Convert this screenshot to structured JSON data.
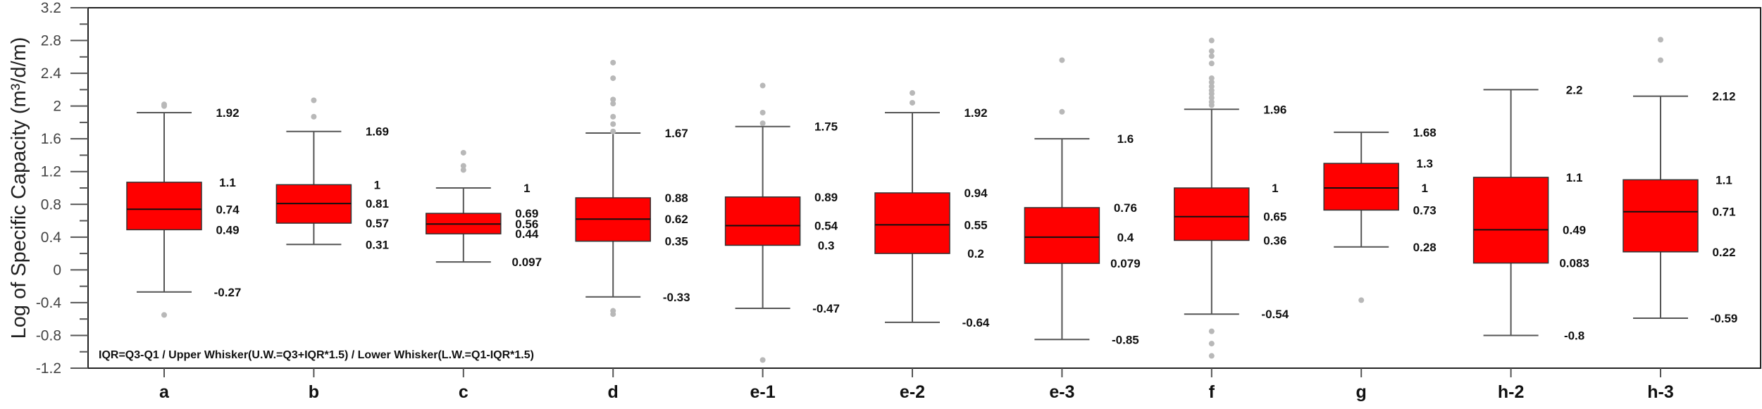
{
  "chart_data": {
    "type": "box",
    "title": "",
    "xlabel": "",
    "ylabel": "Log of Specific Capacity (m³/d/m)",
    "ylim": [
      -1.2,
      3.2
    ],
    "yticks": [
      "3.2",
      "2.8",
      "2.4",
      "2",
      "1.6",
      "1.2",
      "0.8",
      "0.4",
      "0",
      "-0.4",
      "-0.8",
      "-1.2"
    ],
    "grid": false,
    "box_color": "#ff0000",
    "outlier_color": "#b8b8b8",
    "note": "IQR=Q3-Q1 / Upper Whisker(U.W.=Q3+IQR*1.5) / Lower Whisker(L.W.=Q1-IQR*1.5)",
    "categories": [
      "a",
      "b",
      "c",
      "d",
      "e-1",
      "e-2",
      "e-3",
      "f",
      "g",
      "h-2",
      "h-3"
    ],
    "series": [
      {
        "name": "a",
        "upper_whisker": 1.92,
        "q3": 1.07,
        "median": 0.74,
        "q1": 0.49,
        "lower_whisker": -0.27,
        "labels": {
          "upper_whisker": "1.92",
          "q3": "1.1",
          "median": "0.74",
          "q1": "0.49",
          "lower_whisker": "-0.27"
        },
        "outliers": [
          2.0,
          2.02,
          -0.55
        ]
      },
      {
        "name": "b",
        "upper_whisker": 1.69,
        "q3": 1.04,
        "median": 0.81,
        "q1": 0.57,
        "lower_whisker": 0.31,
        "labels": {
          "upper_whisker": "1.69",
          "q3": "1",
          "median": "0.81",
          "q1": "0.57",
          "lower_whisker": "0.31"
        },
        "outliers": [
          2.07,
          1.87
        ]
      },
      {
        "name": "c",
        "upper_whisker": 1.0,
        "q3": 0.69,
        "median": 0.56,
        "q1": 0.44,
        "lower_whisker": 0.097,
        "labels": {
          "upper_whisker": "1",
          "q3": "0.69",
          "median": "0.56",
          "q1": "0.44",
          "lower_whisker": "0.097"
        },
        "outliers": [
          1.43,
          1.27,
          1.22
        ]
      },
      {
        "name": "d",
        "upper_whisker": 1.67,
        "q3": 0.88,
        "median": 0.62,
        "q1": 0.35,
        "lower_whisker": -0.33,
        "labels": {
          "upper_whisker": "1.67",
          "q3": "0.88",
          "median": "0.62",
          "q1": "0.35",
          "lower_whisker": "-0.33"
        },
        "outliers": [
          2.53,
          2.34,
          2.08,
          2.03,
          1.87,
          1.78,
          1.69,
          -0.5,
          -0.54
        ]
      },
      {
        "name": "e-1",
        "upper_whisker": 1.75,
        "q3": 0.89,
        "median": 0.54,
        "q1": 0.3,
        "lower_whisker": -0.47,
        "labels": {
          "upper_whisker": "1.75",
          "q3": "0.89",
          "median": "0.54",
          "q1": "0.3",
          "lower_whisker": "-0.47"
        },
        "outliers": [
          2.25,
          1.92,
          1.79,
          -1.1
        ]
      },
      {
        "name": "e-2",
        "upper_whisker": 1.92,
        "q3": 0.94,
        "median": 0.55,
        "q1": 0.2,
        "lower_whisker": -0.64,
        "labels": {
          "upper_whisker": "1.92",
          "q3": "0.94",
          "median": "0.55",
          "q1": "0.2",
          "lower_whisker": "-0.64"
        },
        "outliers": [
          2.16,
          2.04
        ]
      },
      {
        "name": "e-3",
        "upper_whisker": 1.6,
        "q3": 0.76,
        "median": 0.4,
        "q1": 0.079,
        "lower_whisker": -0.85,
        "labels": {
          "upper_whisker": "1.6",
          "q3": "0.76",
          "median": "0.4",
          "q1": "0.079",
          "lower_whisker": "-0.85"
        },
        "outliers": [
          2.56,
          1.93
        ]
      },
      {
        "name": "f",
        "upper_whisker": 1.96,
        "q3": 1.0,
        "median": 0.65,
        "q1": 0.36,
        "lower_whisker": -0.54,
        "labels": {
          "upper_whisker": "1.96",
          "q3": "1",
          "median": "0.65",
          "q1": "0.36",
          "lower_whisker": "-0.54"
        },
        "outliers": [
          2.8,
          2.67,
          2.61,
          2.52,
          2.34,
          2.29,
          2.24,
          2.19,
          2.15,
          2.1,
          2.05,
          2.01,
          -0.75,
          -0.9,
          -1.05
        ]
      },
      {
        "name": "g",
        "upper_whisker": 1.68,
        "q3": 1.3,
        "median": 1.0,
        "q1": 0.73,
        "lower_whisker": 0.28,
        "labels": {
          "upper_whisker": "1.68",
          "q3": "1.3",
          "median": "1",
          "q1": "0.73",
          "lower_whisker": "0.28"
        },
        "outliers": [
          -0.37
        ]
      },
      {
        "name": "h-2",
        "upper_whisker": 2.2,
        "q3": 1.13,
        "median": 0.49,
        "q1": 0.083,
        "lower_whisker": -0.8,
        "labels": {
          "upper_whisker": "2.2",
          "q3": "1.1",
          "median": "0.49",
          "q1": "0.083",
          "lower_whisker": "-0.8"
        },
        "outliers": []
      },
      {
        "name": "h-3",
        "upper_whisker": 2.12,
        "q3": 1.1,
        "median": 0.71,
        "q1": 0.22,
        "lower_whisker": -0.59,
        "labels": {
          "upper_whisker": "2.12",
          "q3": "1.1",
          "median": "0.71",
          "q1": "0.22",
          "lower_whisker": "-0.59"
        },
        "outliers": [
          2.81,
          2.56
        ]
      }
    ]
  }
}
